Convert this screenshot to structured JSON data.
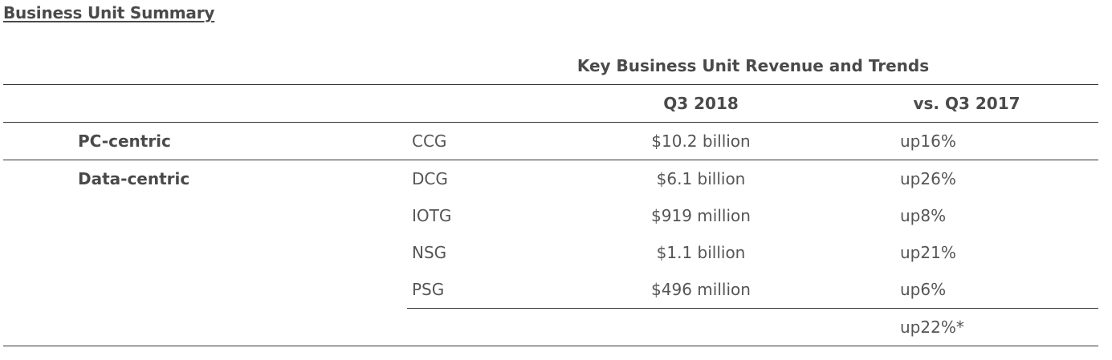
{
  "page": {
    "title": "Business Unit Summary"
  },
  "table": {
    "group_header": "Key Business Unit Revenue and Trends",
    "col_q3_2018": "Q3 2018",
    "col_vs_q3_2017": "vs. Q3 2017",
    "segments": [
      {
        "label": "PC-centric"
      },
      {
        "label": "Data-centric"
      }
    ],
    "rows": [
      {
        "unit": "CCG",
        "revenue": "$10.2 billion",
        "trend_dir": "up",
        "trend_pct": "16%"
      },
      {
        "unit": "DCG",
        "revenue": "$6.1 billion",
        "trend_dir": "up",
        "trend_pct": "26%"
      },
      {
        "unit": "IOTG",
        "revenue": "$919 million",
        "trend_dir": "up",
        "trend_pct": "8%"
      },
      {
        "unit": "NSG",
        "revenue": "$1.1 billion",
        "trend_dir": "up",
        "trend_pct": "21%"
      },
      {
        "unit": "PSG",
        "revenue": "$496 million",
        "trend_dir": "up",
        "trend_pct": "6%"
      }
    ],
    "total": {
      "trend_dir": "up",
      "trend_pct": "22%*"
    }
  }
}
